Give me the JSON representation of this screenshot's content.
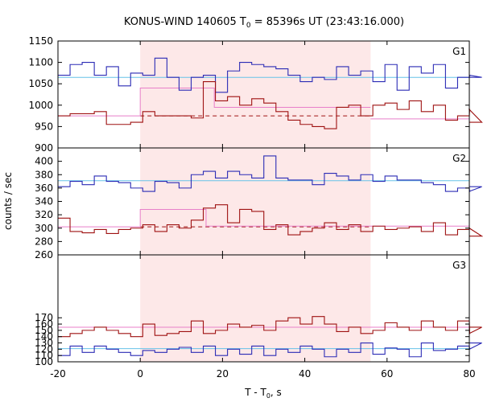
{
  "chart_data": {
    "type": "line",
    "title": "KONUS-WIND 140605 T",
    "title_sub": "0",
    "title_rest": " = 85396s UT (23:43:16.000)",
    "xlabel_main": "T - T",
    "xlabel_sub": "0",
    "xlabel_rest": ", s",
    "ylabel": "counts / sec",
    "xlim": [
      -20,
      80
    ],
    "x_ticks": [
      "-20",
      "0",
      "20",
      "40",
      "60",
      "80"
    ],
    "shaded_region": {
      "x_start": 0,
      "x_end": 56,
      "color": "#fde8e8"
    },
    "colors": {
      "blue": "#2b2bb5",
      "red": "#9e1111",
      "cyan": "#66c2e8",
      "pink": "#e87fc9"
    },
    "panels": [
      {
        "label": "G1",
        "ylim": [
          900,
          1150
        ],
        "y_ticks": [
          "900",
          "950",
          "1000",
          "1050",
          "1100",
          "1150"
        ],
        "series": [
          {
            "color": "blue",
            "x0": -20,
            "step": 2.944,
            "values": [
              1070,
              1095,
              1100,
              1070,
              1090,
              1045,
              1075,
              1070,
              1110,
              1065,
              1035,
              1065,
              1070,
              1030,
              1080,
              1100,
              1095,
              1090,
              1085,
              1070,
              1055,
              1065,
              1060,
              1090,
              1070,
              1080,
              1055,
              1095,
              1035,
              1090,
              1075,
              1095,
              1040,
              1065,
              1070,
              1065
            ]
          },
          {
            "color": "red",
            "x0": -20,
            "step": 2.944,
            "values": [
              975,
              980,
              980,
              985,
              955,
              955,
              960,
              985,
              975,
              975,
              975,
              970,
              1055,
              1010,
              1020,
              1000,
              1015,
              1005,
              985,
              965,
              955,
              950,
              945,
              995,
              1000,
              975,
              1000,
              1005,
              990,
              1010,
              985,
              1000,
              965,
              975,
              990,
              960
            ]
          }
        ],
        "background": {
          "value": 1065
        },
        "background2": {
          "value": 968,
          "x_start": 56,
          "x_end": 80
        },
        "dashed": {
          "value": 975,
          "x_start": 0,
          "x_end": 56
        },
        "fits": [
          {
            "x_start": -20,
            "x_end": 0,
            "value": 975
          },
          {
            "x_start": 0,
            "x_end": 18,
            "value": 1040
          },
          {
            "x_start": 18,
            "x_end": 56,
            "value": 995
          }
        ]
      },
      {
        "label": "G2",
        "ylim": [
          260,
          420
        ],
        "y_ticks": [
          "260",
          "280",
          "300",
          "320",
          "340",
          "360",
          "380",
          "400"
        ],
        "series": [
          {
            "color": "blue",
            "x0": -20,
            "step": 2.944,
            "values": [
              362,
              370,
              365,
              378,
              370,
              368,
              360,
              355,
              370,
              368,
              360,
              380,
              385,
              375,
              385,
              380,
              375,
              408,
              375,
              372,
              372,
              365,
              382,
              378,
              372,
              380,
              370,
              378,
              372,
              372,
              368,
              365,
              355,
              360,
              355,
              362
            ]
          },
          {
            "color": "red",
            "x0": -20,
            "step": 2.944,
            "values": [
              315,
              295,
              293,
              298,
              292,
              298,
              300,
              305,
              295,
              305,
              300,
              312,
              330,
              335,
              308,
              328,
              325,
              298,
              305,
              290,
              295,
              300,
              308,
              298,
              305,
              295,
              303,
              298,
              300,
              302,
              295,
              308,
              290,
              298,
              300,
              288
            ]
          }
        ],
        "background": {
          "value": 371
        },
        "dashed": {
          "value": 302,
          "x_start": 0,
          "x_end": 56
        },
        "fits": [
          {
            "x_start": -20,
            "x_end": 0,
            "value": 302
          },
          {
            "x_start": 0,
            "x_end": 16,
            "value": 328
          },
          {
            "x_start": 16,
            "x_end": 80,
            "value": 303
          }
        ]
      },
      {
        "label": "G3",
        "ylim": [
          100,
          270
        ],
        "y_ticks": [
          "100",
          "110",
          "120",
          "130",
          "140",
          "150",
          "160",
          "170"
        ],
        "series": [
          {
            "color": "blue",
            "x0": -20,
            "step": 2.944,
            "values": [
              110,
              125,
              115,
              125,
              120,
              115,
              110,
              118,
              115,
              120,
              123,
              115,
              125,
              110,
              120,
              112,
              125,
              110,
              120,
              115,
              125,
              120,
              108,
              120,
              115,
              130,
              112,
              122,
              120,
              108,
              130,
              118,
              120,
              125,
              120,
              130
            ]
          },
          {
            "color": "red",
            "x0": -20,
            "step": 2.944,
            "values": [
              140,
              145,
              150,
              155,
              150,
              145,
              140,
              160,
              142,
              145,
              148,
              165,
              145,
              150,
              160,
              155,
              158,
              150,
              165,
              170,
              160,
              172,
              160,
              148,
              155,
              145,
              150,
              162,
              155,
              150,
              165,
              155,
              150,
              165,
              145,
              155
            ]
          }
        ],
        "background": {
          "value": 121
        },
        "fits": [
          {
            "x_start": -20,
            "x_end": 80,
            "value": 155
          }
        ]
      }
    ]
  }
}
